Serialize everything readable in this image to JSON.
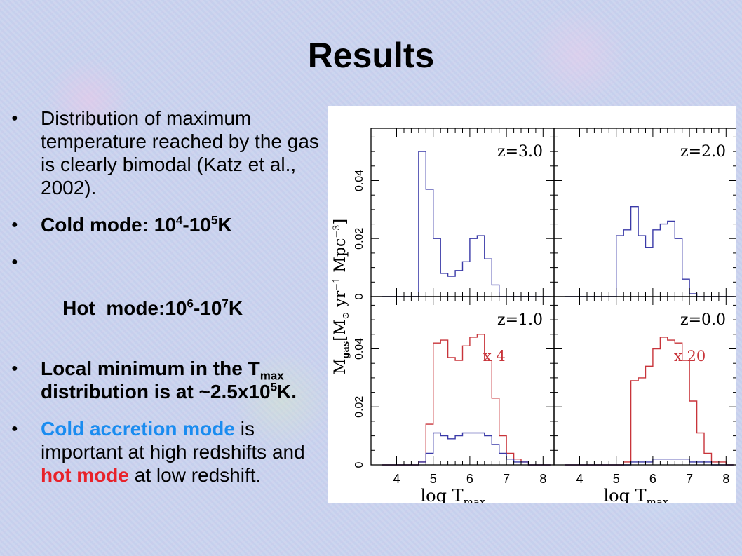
{
  "slide": {
    "title": "Results",
    "bullets": {
      "b1": "Distribution of maximum temperature reached by the gas is clearly bimodal (Katz et al., 2002).",
      "b2": {
        "prefix": "Cold mode: 10",
        "e1": "4",
        "mid": "-10",
        "e2": "5",
        "suffix": "K"
      },
      "b3": {
        "prefix": "Hot  mode:10",
        "e1": "6",
        "mid": "-10",
        "e2": "7",
        "suffix": "K"
      },
      "b4": {
        "part1": "Local minimum in the T",
        "sub": "max",
        "part2": " distribution is at ~2.5x10",
        "sup": "5",
        "part3": "K."
      },
      "b5": {
        "hl1": "Cold accretion mode",
        "t1": " is important at high redshifts and ",
        "hl2": "hot mode",
        "t2": " at low redshift."
      }
    }
  },
  "chart_data": {
    "type": "line",
    "subtype": "step-histogram",
    "panel_layout": "2x2",
    "xlabel": "log T_max",
    "ylabel": "M_gas [M_sun yr^-1 Mpc^-3]",
    "xlim": [
      3.3,
      8.3
    ],
    "ylim": [
      0,
      0.058
    ],
    "x_ticks": [
      "4",
      "5",
      "6",
      "7",
      "8"
    ],
    "y_ticks": [
      "0",
      "0.02",
      "0.04"
    ],
    "bin_edges": [
      3.6,
      3.8,
      4.0,
      4.2,
      4.4,
      4.6,
      4.8,
      5.0,
      5.2,
      5.4,
      5.6,
      5.8,
      6.0,
      6.2,
      6.4,
      6.6,
      6.8,
      7.0,
      7.2,
      7.4,
      7.6,
      7.8,
      8.0,
      8.2
    ],
    "colors": {
      "cold": "#3a3aa8",
      "hot": "#c8343a",
      "axes": "#000000",
      "background": "#ffffff"
    },
    "panels": [
      {
        "label": "z=3.0",
        "series": [
          {
            "color": "#3a3aa8",
            "values": [
              0,
              0,
              0,
              0,
              0,
              0.05,
              0.037,
              0.02,
              0.008,
              0.007,
              0.009,
              0.012,
              0.02,
              0.021,
              0.013,
              0.004,
              0,
              0,
              0,
              0,
              0,
              0,
              0
            ]
          }
        ]
      },
      {
        "label": "z=2.0",
        "series": [
          {
            "color": "#3a3aa8",
            "values": [
              0,
              0,
              0,
              0,
              0,
              0,
              0,
              0.021,
              0.023,
              0.031,
              0.021,
              0.017,
              0.023,
              0.025,
              0.026,
              0.02,
              0.006,
              0.001,
              0,
              0,
              0,
              0,
              0
            ]
          }
        ]
      },
      {
        "label": "z=1.0",
        "multiplier": "x 4",
        "series": [
          {
            "color": "#c8343a",
            "values": [
              0,
              0,
              0,
              0,
              0,
              0.001,
              0.014,
              0.042,
              0.043,
              0.037,
              0.036,
              0.041,
              0.044,
              0.045,
              0.036,
              0.023,
              0.01,
              0.004,
              0.002,
              0.001,
              0,
              0,
              0
            ]
          },
          {
            "color": "#3a3aa8",
            "values": [
              0,
              0,
              0,
              0,
              0,
              0.001,
              0.004,
              0.011,
              0.01,
              0.009,
              0.01,
              0.011,
              0.011,
              0.011,
              0.01,
              0.007,
              0.004,
              0.002,
              0.001,
              0.001,
              0,
              0,
              0
            ]
          }
        ]
      },
      {
        "label": "z=0.0",
        "multiplier": "x 20",
        "series": [
          {
            "color": "#c8343a",
            "values": [
              0,
              0,
              0,
              0,
              0,
              0,
              0,
              0,
              0.001,
              0.029,
              0.03,
              0.034,
              0.04,
              0.044,
              0.043,
              0.042,
              0.036,
              0.022,
              0.011,
              0.004,
              0.001,
              0.001,
              0
            ]
          },
          {
            "color": "#3a3aa8",
            "values": [
              0,
              0,
              0,
              0,
              0,
              0,
              0,
              0,
              0,
              0.001,
              0.001,
              0.001,
              0.002,
              0.002,
              0.002,
              0.002,
              0.002,
              0.001,
              0.001,
              0.001,
              0,
              0,
              0
            ]
          }
        ]
      }
    ]
  }
}
